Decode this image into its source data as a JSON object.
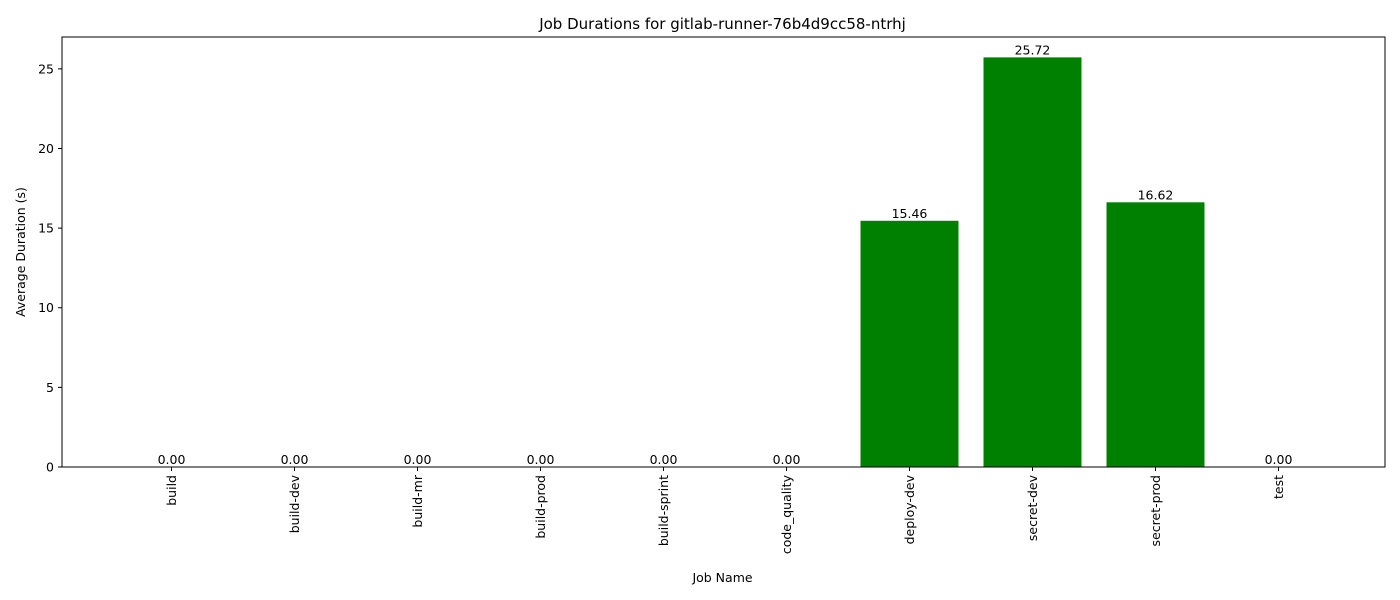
{
  "chart_data": {
    "type": "bar",
    "title": "Job Durations for gitlab-runner-76b4d9cc58-ntrhj",
    "xlabel": "Job Name",
    "ylabel": "Average Duration (s)",
    "categories": [
      "build",
      "build-dev",
      "build-mr",
      "build-prod",
      "build-sprint",
      "code_quality",
      "deploy-dev",
      "secret-dev",
      "secret-prod",
      "test"
    ],
    "values": [
      0.0,
      0.0,
      0.0,
      0.0,
      0.0,
      0.0,
      15.46,
      25.72,
      16.62,
      0.0
    ],
    "data_labels": [
      "0.00",
      "0.00",
      "0.00",
      "0.00",
      "0.00",
      "0.00",
      "15.46",
      "25.72",
      "16.62",
      "0.00"
    ],
    "ylim": [
      0,
      27
    ],
    "yticks": [
      0,
      5,
      10,
      15,
      20,
      25
    ],
    "bar_color": "#008000",
    "grid": false,
    "legend": "none"
  }
}
